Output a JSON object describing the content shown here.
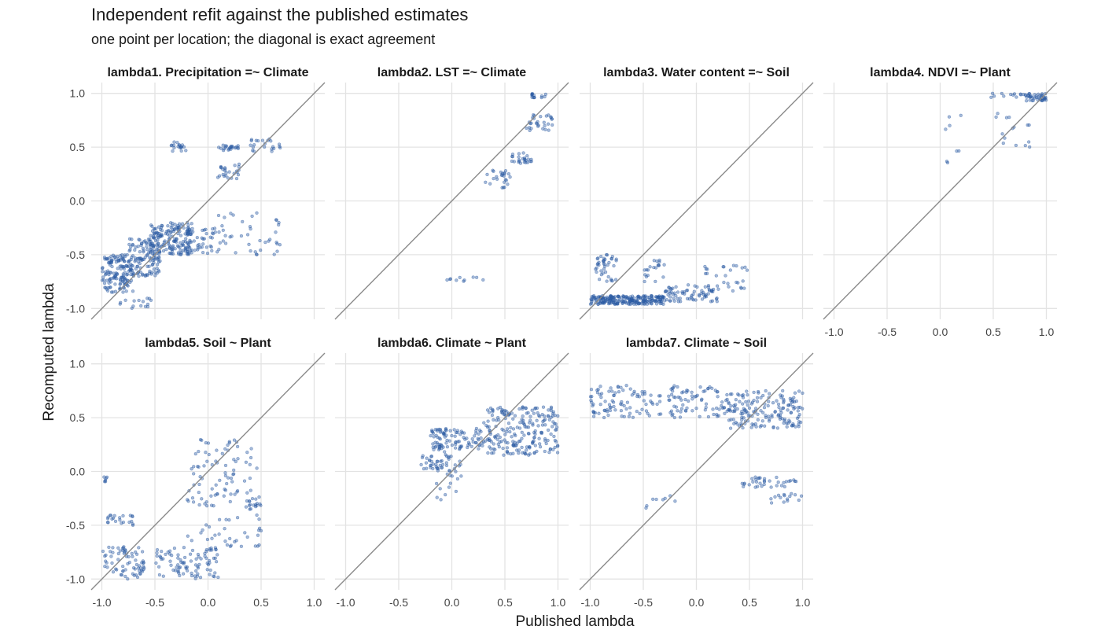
{
  "chart_data": {
    "type": "scatter",
    "title": "Independent refit against the published estimates",
    "subtitle": "one point per location; the diagonal is exact agreement",
    "xlabel": "Published lambda",
    "ylabel": "Recomputed lambda",
    "xlim": [
      -1.1,
      1.1
    ],
    "ylim": [
      -1.1,
      1.1
    ],
    "ticks": [
      -1.0,
      -0.5,
      0.0,
      0.5,
      1.0
    ],
    "tick_labels": [
      "-1.0",
      "-0.5",
      "0.0",
      "0.5",
      "1.0"
    ],
    "grid": true,
    "reference_line": "y = x",
    "point_color": "#2a5aa3",
    "panels": [
      {
        "title": "lambda1. Precipitation =~ Climate",
        "clusters": [
          {
            "x": [
              -1.0,
              -0.7
            ],
            "y": [
              -0.85,
              -0.5
            ],
            "n": 140
          },
          {
            "x": [
              -0.75,
              -0.45
            ],
            "y": [
              -0.7,
              -0.35
            ],
            "n": 120
          },
          {
            "x": [
              -0.55,
              -0.15
            ],
            "y": [
              -0.5,
              -0.2
            ],
            "n": 170
          },
          {
            "x": [
              -0.2,
              0.05
            ],
            "y": [
              -0.5,
              -0.25
            ],
            "n": 40
          },
          {
            "x": [
              -0.35,
              -0.2
            ],
            "y": [
              0.46,
              0.55
            ],
            "n": 18
          },
          {
            "x": [
              0.1,
              0.3
            ],
            "y": [
              0.47,
              0.52
            ],
            "n": 22
          },
          {
            "x": [
              0.4,
              0.7
            ],
            "y": [
              0.45,
              0.58
            ],
            "n": 22
          },
          {
            "x": [
              0.05,
              0.3
            ],
            "y": [
              0.2,
              0.35
            ],
            "n": 25
          },
          {
            "x": [
              0.05,
              0.7
            ],
            "y": [
              -0.5,
              -0.1
            ],
            "n": 45
          },
          {
            "x": [
              -0.9,
              -0.5
            ],
            "y": [
              -1.0,
              -0.9
            ],
            "n": 15
          }
        ]
      },
      {
        "title": "lambda2. LST =~ Climate",
        "clusters": [
          {
            "x": [
              0.75,
              0.9
            ],
            "y": [
              0.96,
              1.0
            ],
            "n": 14
          },
          {
            "x": [
              0.7,
              0.95
            ],
            "y": [
              0.65,
              0.8
            ],
            "n": 30
          },
          {
            "x": [
              0.55,
              0.75
            ],
            "y": [
              0.35,
              0.45
            ],
            "n": 25
          },
          {
            "x": [
              0.3,
              0.55
            ],
            "y": [
              0.12,
              0.3
            ],
            "n": 25
          },
          {
            "x": [
              -0.05,
              0.3
            ],
            "y": [
              -0.75,
              -0.7
            ],
            "n": 10
          }
        ]
      },
      {
        "title": "lambda3. Water content =~ Soil",
        "clusters": [
          {
            "x": [
              -1.0,
              -0.3
            ],
            "y": [
              -0.96,
              -0.88
            ],
            "n": 220
          },
          {
            "x": [
              -0.3,
              0.2
            ],
            "y": [
              -0.95,
              -0.78
            ],
            "n": 70
          },
          {
            "x": [
              -0.95,
              -0.75
            ],
            "y": [
              -0.75,
              -0.5
            ],
            "n": 40
          },
          {
            "x": [
              -0.5,
              -0.3
            ],
            "y": [
              -0.75,
              -0.55
            ],
            "n": 20
          },
          {
            "x": [
              0.05,
              0.5
            ],
            "y": [
              -0.85,
              -0.6
            ],
            "n": 30
          }
        ]
      },
      {
        "title": "lambda4. NDVI =~ Plant",
        "clusters": [
          {
            "x": [
              0.8,
              1.0
            ],
            "y": [
              0.93,
              1.0
            ],
            "n": 40
          },
          {
            "x": [
              0.45,
              0.8
            ],
            "y": [
              0.96,
              1.0
            ],
            "n": 12
          },
          {
            "x": [
              0.5,
              0.85
            ],
            "y": [
              0.5,
              0.85
            ],
            "n": 15
          },
          {
            "x": [
              0.05,
              0.2
            ],
            "y": [
              0.3,
              0.8
            ],
            "n": 8
          }
        ]
      },
      {
        "title": "lambda5. Soil ~ Plant",
        "clusters": [
          {
            "x": [
              -1.0,
              -0.6
            ],
            "y": [
              -1.0,
              -0.7
            ],
            "n": 70
          },
          {
            "x": [
              -0.5,
              0.1
            ],
            "y": [
              -1.0,
              -0.7
            ],
            "n": 90
          },
          {
            "x": [
              -0.95,
              -0.7
            ],
            "y": [
              -0.5,
              -0.4
            ],
            "n": 22
          },
          {
            "x": [
              -1.0,
              -0.95
            ],
            "y": [
              -0.1,
              -0.05
            ],
            "n": 6
          },
          {
            "x": [
              -0.2,
              0.5
            ],
            "y": [
              -0.7,
              0.3
            ],
            "n": 120
          },
          {
            "x": [
              0.3,
              0.5
            ],
            "y": [
              -0.35,
              -0.25
            ],
            "n": 15
          }
        ]
      },
      {
        "title": "lambda6. Climate ~ Plant",
        "clusters": [
          {
            "x": [
              -0.2,
              0.3
            ],
            "y": [
              0.2,
              0.4
            ],
            "n": 90
          },
          {
            "x": [
              0.3,
              1.0
            ],
            "y": [
              0.15,
              0.6
            ],
            "n": 220
          },
          {
            "x": [
              -0.15,
              0.1
            ],
            "y": [
              -0.3,
              0.3
            ],
            "n": 40
          },
          {
            "x": [
              -0.3,
              0.0
            ],
            "y": [
              0.0,
              0.15
            ],
            "n": 30
          }
        ]
      },
      {
        "title": "lambda7. Climate ~ Soil",
        "clusters": [
          {
            "x": [
              -1.0,
              0.3
            ],
            "y": [
              0.5,
              0.8
            ],
            "n": 170
          },
          {
            "x": [
              0.3,
              1.0
            ],
            "y": [
              0.4,
              0.75
            ],
            "n": 170
          },
          {
            "x": [
              0.4,
              0.95
            ],
            "y": [
              -0.15,
              -0.05
            ],
            "n": 35
          },
          {
            "x": [
              0.7,
              1.0
            ],
            "y": [
              -0.3,
              -0.2
            ],
            "n": 15
          },
          {
            "x": [
              -0.5,
              -0.2
            ],
            "y": [
              -0.35,
              -0.2
            ],
            "n": 8
          }
        ]
      }
    ]
  }
}
